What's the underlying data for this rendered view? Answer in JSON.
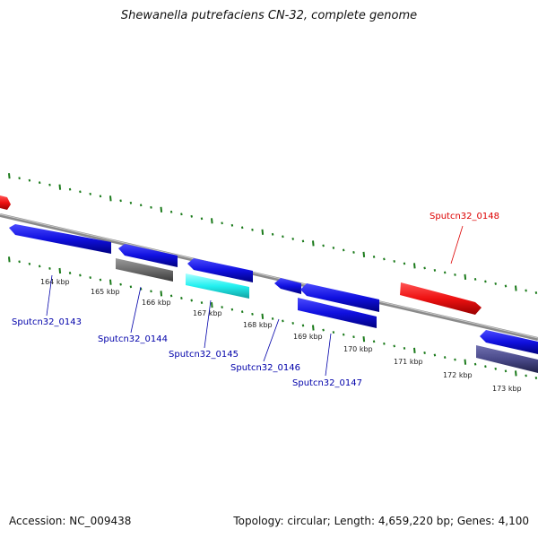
{
  "title": "Shewanella putrefaciens CN-32, complete genome",
  "footer": {
    "accession": "Accession: NC_009438",
    "summary": "Topology: circular; Length: 4,659,220 bp; Genes: 4,100"
  },
  "colors": {
    "backbone": "#8a8a8a",
    "tick": "#1a7a1a",
    "blue_gene": "#1010e0",
    "red_gene": "#ee1111",
    "gray_gene": "#6e6e6e",
    "cyan_gene": "#22f0f0",
    "navy_gene": "#4a4a8a",
    "label_blue": "#0000aa",
    "label_red": "#dd0000"
  },
  "kbp_labels": [
    "164 kbp",
    "165 kbp",
    "166 kbp",
    "167 kbp",
    "168 kbp",
    "169 kbp",
    "170 kbp",
    "171 kbp",
    "172 kbp",
    "173 kbp"
  ],
  "genes": [
    {
      "name": "Sputcn32_0143",
      "color": "label_blue"
    },
    {
      "name": "Sputcn32_0144",
      "color": "label_blue"
    },
    {
      "name": "Sputcn32_0145",
      "color": "label_blue"
    },
    {
      "name": "Sputcn32_0146",
      "color": "label_blue"
    },
    {
      "name": "Sputcn32_0147",
      "color": "label_blue"
    },
    {
      "name": "Sputcn32_0148",
      "color": "label_red"
    }
  ]
}
